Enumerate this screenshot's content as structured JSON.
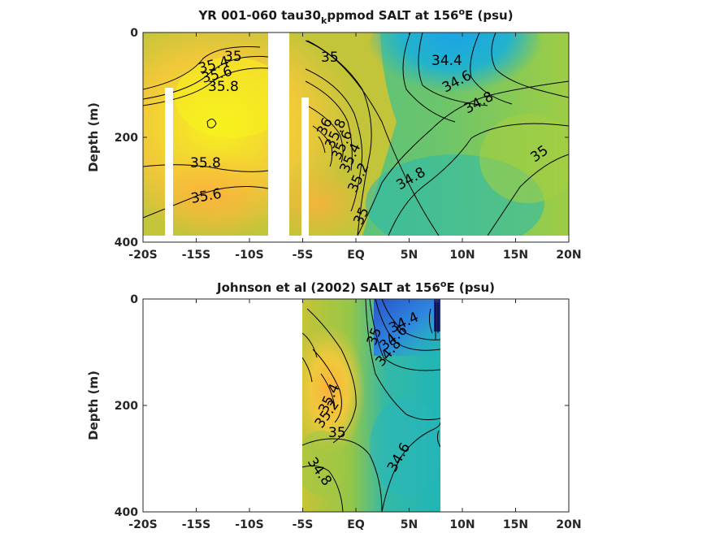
{
  "chart_data": [
    {
      "type": "heatmap",
      "title": "YR 001-060 tau30",
      "title_sub": "k",
      "title_mid": "ppmod SALT at 156",
      "title_sup": "o",
      "title_end": "E (psu)",
      "ylabel": "Depth (m)",
      "x_ticks": [
        "-20S",
        "-15S",
        "-10S",
        "-5S",
        "EQ",
        "5N",
        "10N",
        "15N",
        "20N"
      ],
      "y_ticks": [
        "0",
        "200",
        "400"
      ],
      "xlim": [
        -20,
        20
      ],
      "ylim": [
        0,
        400
      ],
      "colors": {
        "high": "#f7f21e",
        "mid": "#8fcc4a",
        "low": "#23b5c8",
        "min": "#1aa3e6"
      },
      "contour_labels": [
        "35",
        "35.4",
        "35.6",
        "35.8",
        "35",
        "34.4",
        "34.6",
        "34.8",
        "35.8",
        "35.6",
        "36",
        "35.8",
        "35.6",
        "35.4",
        "35.2",
        "34.8",
        "35",
        "35"
      ]
    },
    {
      "type": "heatmap",
      "title": "Johnson et al (2002) SALT at 156",
      "title_sup": "o",
      "title_end": "E (psu)",
      "ylabel": "Depth (m)",
      "x_ticks": [
        "-20S",
        "-15S",
        "-10S",
        "-5S",
        "EQ",
        "5N",
        "10N",
        "15N",
        "20N"
      ],
      "y_ticks": [
        "0",
        "200",
        "400"
      ],
      "xlim": [
        -20,
        20
      ],
      "ylim": [
        0,
        400
      ],
      "data_extent_x": [
        -5,
        8
      ],
      "colors": {
        "high": "#fbb23a",
        "mid": "#8fcc4a",
        "low": "#23b5c8",
        "min": "#2a56c9"
      },
      "contour_labels": [
        "34.4",
        "34.6",
        "34.8",
        "35",
        "35.4",
        "35.2",
        "35",
        "34.8",
        "34.6"
      ]
    }
  ]
}
